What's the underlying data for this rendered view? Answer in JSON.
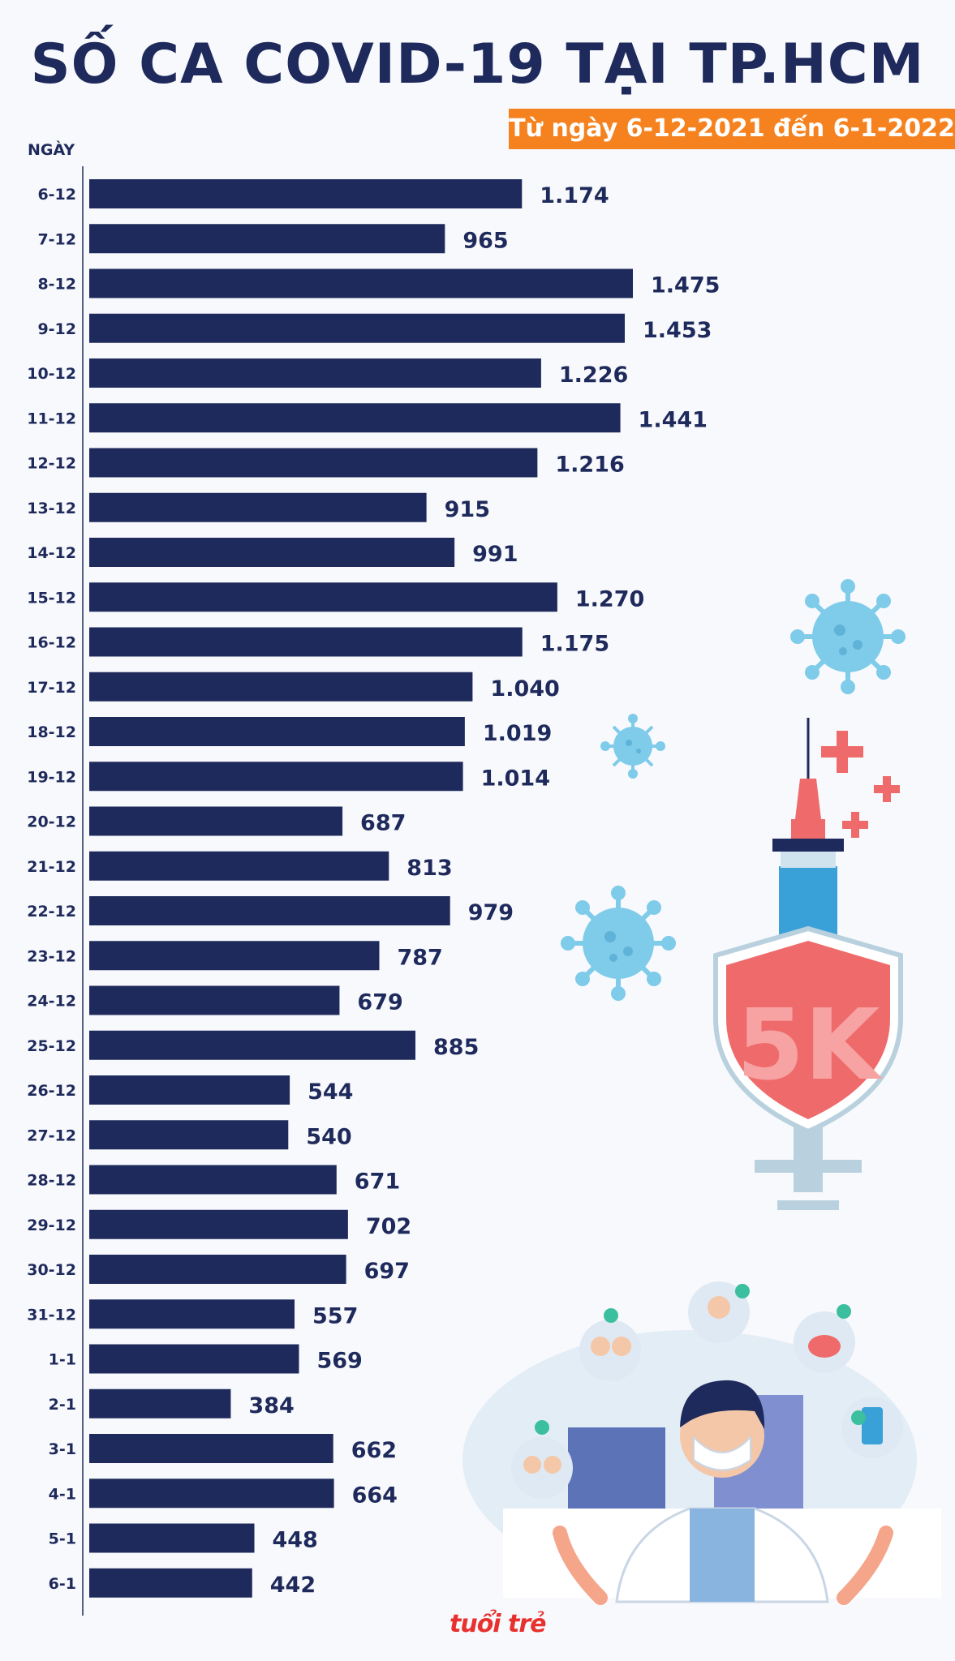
{
  "header": {
    "title": "SỐ CA COVID-19 TẠI TP.HCM",
    "subtitle": "Từ ngày 6-12-2021 đến 6-1-2022"
  },
  "colors": {
    "bar": "#1f2a5c",
    "title": "#1f2a5c",
    "subtitle_bg": "#f5821f",
    "shield": "#ef6b6b",
    "virus": "#7fcbea"
  },
  "logo": {
    "text": "tuổi trẻ"
  },
  "chart_data": {
    "type": "bar",
    "orientation": "horizontal",
    "title": "SỐ CA COVID-19 TẠI TP.HCM",
    "subtitle": "Từ ngày 6-12-2021 đến 6-1-2022",
    "ylabel": "NGÀY",
    "xlabel": "",
    "grid": false,
    "legend": "none",
    "xlim": [
      0,
      1475
    ],
    "categories": [
      "6-12",
      "7-12",
      "8-12",
      "9-12",
      "10-12",
      "11-12",
      "12-12",
      "13-12",
      "14-12",
      "15-12",
      "16-12",
      "17-12",
      "18-12",
      "19-12",
      "20-12",
      "21-12",
      "22-12",
      "23-12",
      "24-12",
      "25-12",
      "26-12",
      "27-12",
      "28-12",
      "29-12",
      "30-12",
      "31-12",
      "1-1",
      "2-1",
      "3-1",
      "4-1",
      "5-1",
      "6-1"
    ],
    "values": [
      1174,
      965,
      1475,
      1453,
      1226,
      1441,
      1216,
      915,
      991,
      1270,
      1175,
      1040,
      1019,
      1014,
      687,
      813,
      979,
      787,
      679,
      885,
      544,
      540,
      671,
      702,
      697,
      557,
      569,
      384,
      662,
      664,
      448,
      442
    ],
    "value_labels": [
      "1.174",
      "965",
      "1.475",
      "1.453",
      "1.226",
      "1.441",
      "1.216",
      "915",
      "991",
      "1.270",
      "1.175",
      "1.040",
      "1.019",
      "1.014",
      "687",
      "813",
      "979",
      "787",
      "679",
      "885",
      "544",
      "540",
      "671",
      "702",
      "697",
      "557",
      "569",
      "384",
      "662",
      "664",
      "448",
      "442"
    ]
  }
}
